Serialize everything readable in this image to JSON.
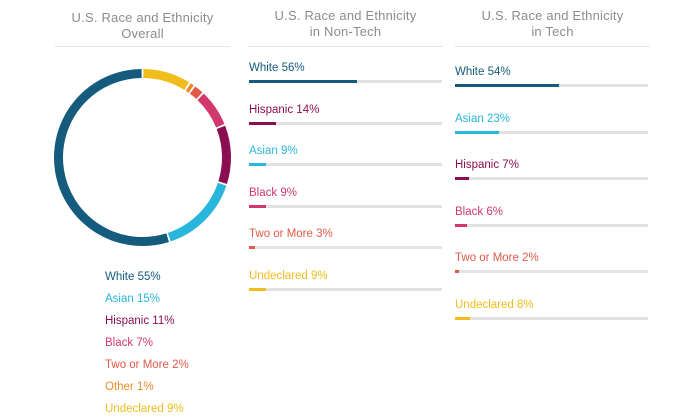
{
  "colors": {
    "White": "#145b7d",
    "Asian": "#29b6dc",
    "Hispanic": "#8c0e52",
    "Black": "#d2386d",
    "Two or More": "#e05a45",
    "Other": "#ec8a2a",
    "Undeclared": "#f0bd1c",
    "title": "#8c8c8c",
    "track": "#e2e2e2"
  },
  "chart_data": [
    {
      "type": "pie",
      "title": [
        "U.S. Race and Ethnicity",
        "Overall"
      ],
      "categories": [
        "White",
        "Asian",
        "Hispanic",
        "Black",
        "Two or More",
        "Other",
        "Undeclared"
      ],
      "values": [
        55,
        15,
        11,
        7,
        2,
        1,
        9
      ],
      "legend": [
        "White 55%",
        "Asian 15%",
        "Hispanic 11%",
        "Black 7%",
        "Two or More 2%",
        "Other 1%",
        "Undeclared 9%"
      ],
      "legend_position": "bottom"
    },
    {
      "type": "bar",
      "title": [
        "U.S. Race and Ethnicity",
        "in Non-Tech"
      ],
      "categories": [
        "White",
        "Hispanic",
        "Asian",
        "Black",
        "Two or More",
        "Undeclared"
      ],
      "values": [
        56,
        14,
        9,
        9,
        3,
        9
      ],
      "labels": [
        "White 56%",
        "Hispanic 14%",
        "Asian 9%",
        "Black 9%",
        "Two or More 3%",
        "Undeclared 9%"
      ],
      "xlim": [
        0,
        100
      ]
    },
    {
      "type": "bar",
      "title": [
        "U.S. Race and Ethnicity",
        "in Tech"
      ],
      "categories": [
        "White",
        "Asian",
        "Hispanic",
        "Black",
        "Two or More",
        "Undeclared"
      ],
      "values": [
        54,
        23,
        7,
        6,
        2,
        8
      ],
      "labels": [
        "White 54%",
        "Asian 23%",
        "Hispanic 7%",
        "Black 6%",
        "Two or More 2%",
        "Undeclared 8%"
      ],
      "xlim": [
        0,
        100
      ]
    }
  ]
}
